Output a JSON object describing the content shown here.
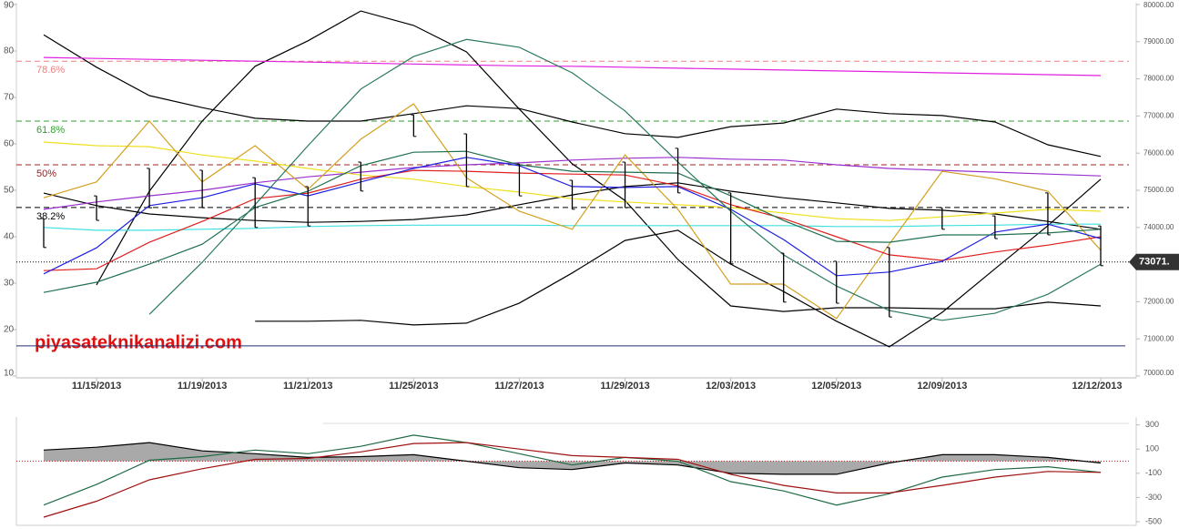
{
  "chart_data": [
    {
      "type": "line",
      "annotation": "piyasateknikanalizi.com",
      "categories": [
        null,
        "11/15/2013",
        null,
        "11/19/2013",
        null,
        "11/21/2013",
        null,
        "11/25/2013",
        null,
        "11/27/2013",
        null,
        "11/29/2013",
        null,
        "12/03/2013",
        null,
        "12/05/2013",
        null,
        "12/09/2013",
        null,
        null,
        "12/12/2013"
      ],
      "ylim": [
        10,
        90
      ],
      "yticks": [
        10,
        20,
        30,
        40,
        50,
        60,
        70,
        80,
        90
      ],
      "y2lim": [
        70000,
        80000
      ],
      "y2ticks": [
        {
          "value": 70000,
          "label": "70000.00"
        },
        {
          "value": 71000,
          "label": "71000.00"
        },
        {
          "value": 72000,
          "label": "72000.00"
        },
        {
          "value": 73000,
          "label": "73000.00"
        },
        {
          "value": 74000,
          "label": "74000.00"
        },
        {
          "value": 75000,
          "label": "75000.00"
        },
        {
          "value": 76000,
          "label": "76000.00"
        },
        {
          "value": 77000,
          "label": "77000.00"
        },
        {
          "value": 78000,
          "label": "78000.00"
        },
        {
          "value": 79000,
          "label": "79000.00"
        },
        {
          "value": 80000,
          "label": "80000.00"
        }
      ],
      "levels": [
        {
          "label": "78.6%",
          "value": 77.8,
          "color": "#f08080"
        },
        {
          "label": "61.8%",
          "value": 64.9,
          "color": "#30a030"
        },
        {
          "label": "50%",
          "value": 55.5,
          "color": "#a02020"
        },
        {
          "label": "38.2%",
          "value": 46.3,
          "color": "#000000"
        }
      ],
      "hlines": [
        {
          "value": 16.5,
          "color": "#203070"
        }
      ],
      "current_price": {
        "value": 73071,
        "label": "73071."
      },
      "candles": {
        "axis": "y2",
        "color": "#000000",
        "high": [
          74240,
          74850,
          75590,
          75540,
          75340,
          75100,
          75760,
          77030,
          76520,
          75710,
          75270,
          75760,
          76130,
          74930,
          73310,
          73090,
          73460,
          74530,
          74310,
          74930,
          74040
        ],
        "low": [
          73460,
          74190,
          74530,
          74530,
          74000,
          74040,
          74980,
          76450,
          75100,
          74850,
          74490,
          74530,
          74930,
          73020,
          71990,
          71960,
          71590,
          73950,
          73700,
          73800,
          72970
        ]
      },
      "series": [
        {
          "color": "#000000",
          "values": [
            83.5,
            76.5,
            70.4,
            67.8,
            65.5,
            64.9,
            64.9,
            66.5,
            68.2,
            67.6,
            64.7,
            62.2,
            61.4,
            63.7,
            64.5,
            67.5,
            66.5,
            66.1,
            64.7,
            59.8,
            57.3
          ]
        },
        {
          "color": "#000000",
          "values": [
            49.4,
            46.7,
            44.9,
            44.1,
            43.5,
            43.1,
            43.3,
            43.7,
            44.7,
            46.9,
            49.0,
            50.8,
            51.6,
            49.8,
            48.4,
            47.3,
            46.1,
            45.7,
            44.9,
            43.3,
            41.6
          ]
        },
        {
          "color": "#000000",
          "values": [
            null,
            null,
            null,
            null,
            21.8,
            21.8,
            22.0,
            21.0,
            21.4,
            25.7,
            32.2,
            39.2,
            41.4,
            34.1,
            28.2,
            21.8,
            16.3,
            23.7,
            33.1,
            42.4,
            52.4
          ]
        },
        {
          "color": "#000000",
          "values": [
            null,
            29.6,
            49.8,
            64.9,
            76.7,
            82.2,
            88.6,
            85.5,
            79.8,
            67.5,
            55.7,
            47.8,
            35.1,
            25.1,
            23.9,
            24.7,
            24.7,
            24.5,
            24.5,
            25.9,
            25.1
          ]
        },
        {
          "color": "#e020e0",
          "values": [
            78.6,
            78.4,
            78.2,
            78.0,
            77.8,
            77.6,
            77.4,
            77.2,
            77.0,
            76.8,
            76.7,
            76.5,
            76.3,
            76.1,
            75.9,
            75.7,
            75.5,
            75.3,
            75.1,
            74.9,
            74.7
          ]
        },
        {
          "color": "#9a30d0",
          "values": [
            45.9,
            47.5,
            48.8,
            50.0,
            51.6,
            52.9,
            53.9,
            54.9,
            55.5,
            55.9,
            56.5,
            56.9,
            57.1,
            56.7,
            56.5,
            55.5,
            54.7,
            54.3,
            53.9,
            53.5,
            53.1
          ]
        },
        {
          "color": "#f0e020",
          "values": [
            60.4,
            59.6,
            59.4,
            57.6,
            56.3,
            54.7,
            53.3,
            52.4,
            50.8,
            49.6,
            48.2,
            47.5,
            46.9,
            46.3,
            45.1,
            43.9,
            43.5,
            44.3,
            45.1,
            45.9,
            45.5
          ]
        },
        {
          "color": "#40e0e0",
          "values": [
            42.0,
            41.4,
            41.4,
            41.6,
            41.8,
            42.2,
            42.4,
            42.5,
            42.5,
            42.5,
            42.4,
            42.4,
            42.4,
            42.4,
            42.4,
            42.2,
            42.2,
            42.4,
            42.5,
            42.7,
            42.7
          ]
        },
        {
          "color": "#d4a020",
          "values": [
            48.4,
            51.8,
            64.9,
            51.8,
            59.6,
            50.2,
            61.0,
            68.6,
            52.7,
            45.5,
            41.6,
            57.6,
            45.9,
            29.8,
            29.8,
            22.4,
            38.4,
            54.1,
            52.5,
            49.8,
            37.1
          ]
        },
        {
          "color": "#e02020",
          "values": [
            32.7,
            33.1,
            38.8,
            43.3,
            48.2,
            49.4,
            52.4,
            54.3,
            54.1,
            53.7,
            53.5,
            53.3,
            51.0,
            46.9,
            43.9,
            40.0,
            36.1,
            34.9,
            36.7,
            38.2,
            40.0
          ]
        },
        {
          "color": "#2020e0",
          "values": [
            32.0,
            37.6,
            46.7,
            48.4,
            51.4,
            48.8,
            51.8,
            54.7,
            57.1,
            55.3,
            50.8,
            50.6,
            50.8,
            45.9,
            39.4,
            31.6,
            32.4,
            34.7,
            41.0,
            42.7,
            39.6
          ]
        },
        {
          "color": "#207050",
          "values": [
            28.0,
            30.2,
            34.1,
            38.4,
            46.3,
            49.8,
            55.3,
            58.2,
            58.4,
            55.5,
            54.1,
            53.9,
            53.7,
            48.8,
            43.5,
            39.0,
            38.8,
            40.4,
            40.4,
            40.8,
            41.6
          ]
        },
        {
          "color": "#2a7a5a",
          "values": [
            null,
            null,
            23.3,
            34.5,
            46.9,
            59.6,
            71.8,
            78.8,
            82.5,
            80.8,
            75.3,
            67.1,
            56.1,
            45.5,
            36.1,
            29.4,
            24.1,
            22.0,
            23.5,
            27.6,
            34.1
          ]
        }
      ]
    },
    {
      "type": "line",
      "ylim": [
        -530,
        350
      ],
      "yticks": [
        300,
        100,
        -100,
        -300,
        -500
      ],
      "reference_line": {
        "value": 0,
        "color": "#d02020"
      },
      "fill_series": 0,
      "fill_color": "#a0a0a0",
      "series": [
        {
          "color": "#000000",
          "values": [
            92,
            115,
            154,
            85,
            62,
            31,
            38,
            54,
            0,
            -54,
            -69,
            -15,
            -31,
            -100,
            -108,
            -108,
            -15,
            54,
            54,
            31,
            -15
          ]
        },
        {
          "color": "#1f6a45",
          "values": [
            -362,
            -192,
            8,
            38,
            92,
            62,
            123,
            215,
            154,
            62,
            -31,
            31,
            0,
            -169,
            -246,
            -362,
            -269,
            -131,
            -69,
            -46,
            -92
          ]
        },
        {
          "color": "#a01010",
          "values": [
            -462,
            -331,
            -154,
            -62,
            15,
            23,
            77,
            146,
            154,
            100,
            46,
            31,
            15,
            -108,
            -200,
            -262,
            -262,
            -200,
            -131,
            -85,
            -92
          ]
        }
      ]
    }
  ]
}
